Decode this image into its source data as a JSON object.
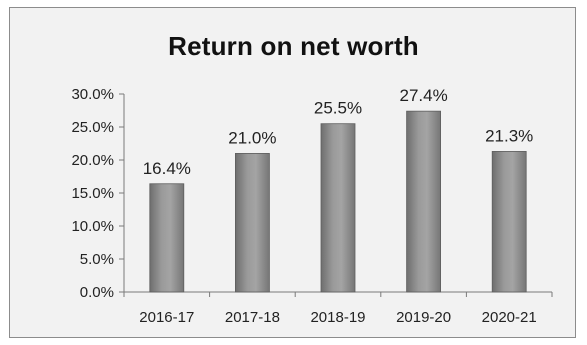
{
  "chart_data": {
    "type": "bar",
    "title": "Return on net worth",
    "categories": [
      "2016-17",
      "2017-18",
      "2018-19",
      "2019-20",
      "2020-21"
    ],
    "values": [
      16.4,
      21.0,
      25.5,
      27.4,
      21.3
    ],
    "data_labels": [
      "16.4%",
      "21.0%",
      "25.5%",
      "27.4%",
      "21.3%"
    ],
    "ylim": [
      0,
      30
    ],
    "yticks": [
      0,
      5,
      10,
      15,
      20,
      25,
      30
    ],
    "ytick_labels": [
      "0.0%",
      "5.0%",
      "10.0%",
      "15.0%",
      "20.0%",
      "25.0%",
      "30.0%"
    ],
    "grid": false,
    "legend": "none",
    "bar_color": "#8a8a8a"
  }
}
